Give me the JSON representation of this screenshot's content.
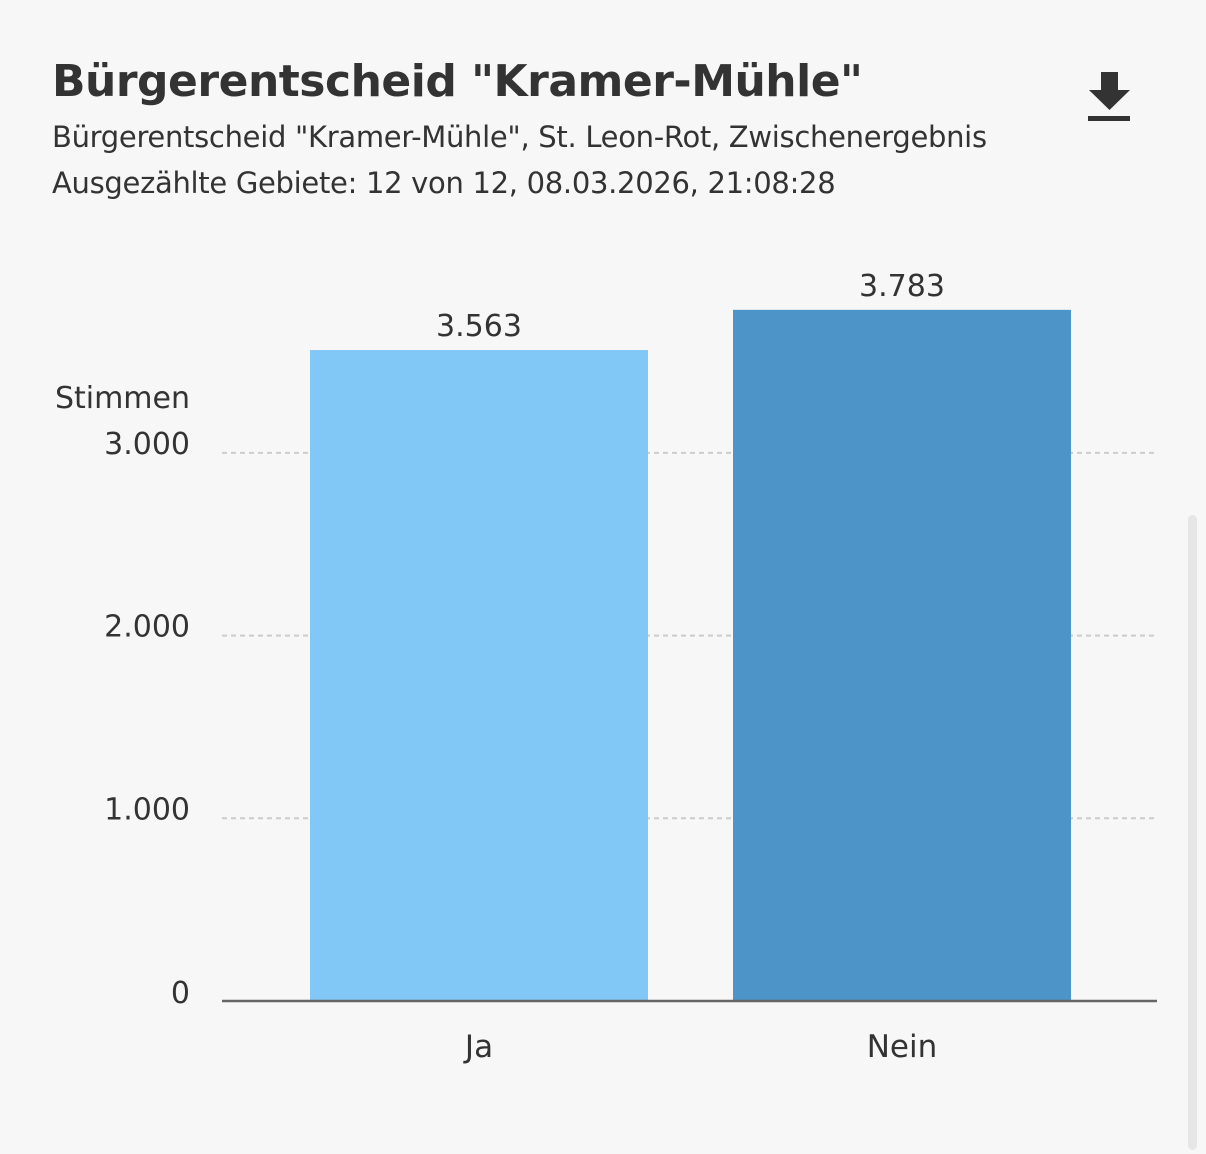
{
  "header": {
    "title": "Bürgerentscheid \"Kramer-Mühle\"",
    "subtitle": "Bürgerentscheid \"Kramer-Mühle\", St. Leon-Rot, Zwischenergebnis",
    "status": "Ausgezählte Gebiete: 12 von 12, 08.03.2026, 21:08:28",
    "download_icon": "download-icon"
  },
  "chart_data": {
    "type": "bar",
    "title": "Bürgerentscheid \"Kramer-Mühle\"",
    "xlabel": "",
    "ylabel": "Stimmen",
    "categories": [
      "Ja",
      "Nein"
    ],
    "values": [
      3563,
      3783
    ],
    "value_labels": [
      "3.563",
      "3.783"
    ],
    "colors": [
      "#82c8f7",
      "#4d94c8"
    ],
    "ylim": [
      0,
      3500
    ],
    "yticks": [
      0,
      1000,
      2000,
      3000
    ],
    "ytick_labels": [
      "0",
      "1.000",
      "2.000",
      "3.000"
    ],
    "grid": true
  }
}
